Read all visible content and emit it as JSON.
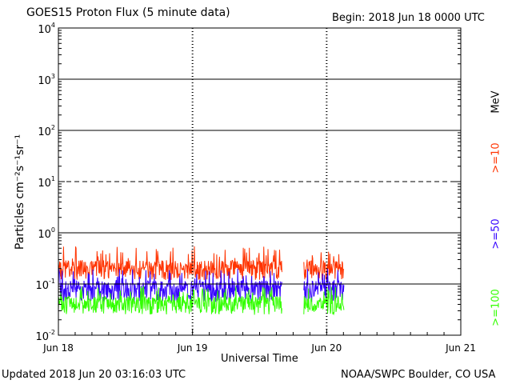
{
  "chart_data": {
    "type": "line",
    "title": "GOES15 Proton Flux (5 minute data)",
    "begin_label": "Begin: 2018 Jun 18 0000 UTC",
    "xlabel": "Universal Time",
    "ylabel": "Particles cm⁻²s⁻¹sr⁻¹",
    "y_scale": "log",
    "ylim": [
      0.01,
      10000
    ],
    "ytick_labels": [
      {
        "base": "10",
        "exp": "-2",
        "value": 0.01
      },
      {
        "base": "10",
        "exp": "-1",
        "value": 0.1
      },
      {
        "base": "10",
        "exp": "0",
        "value": 1
      },
      {
        "base": "10",
        "exp": "1",
        "value": 10
      },
      {
        "base": "10",
        "exp": "2",
        "value": 100
      },
      {
        "base": "10",
        "exp": "3",
        "value": 1000
      },
      {
        "base": "10",
        "exp": "4",
        "value": 10000
      }
    ],
    "x_categories": [
      "Jun 18",
      "Jun 19",
      "Jun 20",
      "Jun 21"
    ],
    "xlim_days": [
      0,
      3
    ],
    "threshold_lines": [
      {
        "value": 10,
        "style": "dashed"
      },
      {
        "value": 0.1,
        "style": "solid"
      },
      {
        "value": 1,
        "style": "solid"
      },
      {
        "value": 100,
        "style": "solid"
      },
      {
        "value": 1000,
        "style": "solid"
      }
    ],
    "energy_unit": "MeV",
    "series": [
      {
        "name": ">=10",
        "color": "#ff3300",
        "range": [
          0.12,
          0.55
        ],
        "typical": 0.2
      },
      {
        "name": ">=50",
        "color": "#3300ff",
        "range": [
          0.045,
          0.2
        ],
        "typical": 0.08
      },
      {
        "name": ">=100",
        "color": "#33ff00",
        "range": [
          0.025,
          0.09
        ],
        "typical": 0.04
      }
    ],
    "data_segments_days": [
      [
        0.0,
        1.67
      ],
      [
        1.83,
        2.13
      ]
    ]
  },
  "footer": {
    "updated": "Updated 2018 Jun 20 03:16:03 UTC",
    "credit": "NOAA/SWPC Boulder, CO USA"
  }
}
